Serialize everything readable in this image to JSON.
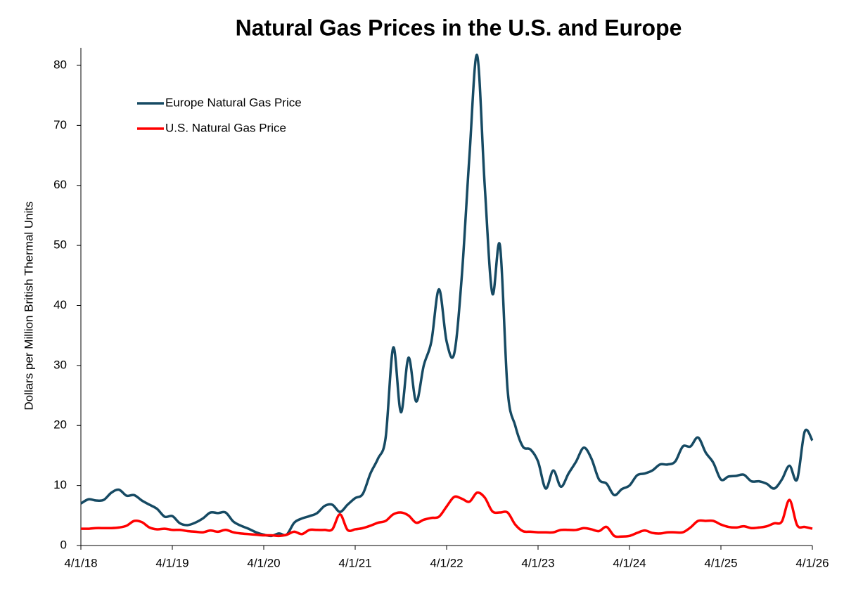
{
  "chart_data": {
    "type": "line",
    "title": "Natural Gas Prices in the U.S. and Europe",
    "y_label": "Dollars per Million British Thermal Units",
    "x": [
      "4/1/18",
      "5/1/18",
      "6/1/18",
      "7/1/18",
      "8/1/18",
      "9/1/18",
      "10/1/18",
      "11/1/18",
      "12/1/18",
      "1/1/19",
      "2/1/19",
      "3/1/19",
      "4/1/19",
      "5/1/19",
      "6/1/19",
      "7/1/19",
      "8/1/19",
      "9/1/19",
      "10/1/19",
      "11/1/19",
      "12/1/19",
      "1/1/20",
      "2/1/20",
      "3/1/20",
      "4/1/20",
      "5/1/20",
      "6/1/20",
      "7/1/20",
      "8/1/20",
      "9/1/20",
      "10/1/20",
      "11/1/20",
      "12/1/20",
      "1/1/21",
      "2/1/21",
      "3/1/21",
      "4/1/21",
      "5/1/21",
      "6/1/21",
      "7/1/21",
      "8/1/21",
      "9/1/21",
      "10/1/21",
      "11/1/21",
      "12/1/21",
      "1/1/22",
      "2/1/22",
      "3/1/22",
      "4/1/22",
      "5/1/22",
      "6/1/22",
      "7/1/22",
      "8/1/22",
      "9/1/22",
      "10/1/22",
      "11/1/22",
      "12/1/22",
      "1/1/23",
      "2/1/23",
      "3/1/23",
      "4/1/23",
      "5/1/23",
      "6/1/23",
      "7/1/23",
      "8/1/23",
      "9/1/23",
      "10/1/23",
      "11/1/23",
      "12/1/23",
      "1/1/24",
      "2/1/24",
      "3/1/24",
      "4/1/24",
      "5/1/24",
      "6/1/24",
      "7/1/24",
      "8/1/24",
      "9/1/24",
      "10/1/24",
      "11/1/24",
      "12/1/24",
      "1/1/25",
      "2/1/25",
      "3/1/25",
      "4/1/25",
      "5/1/25",
      "6/1/25",
      "7/1/25",
      "8/1/25",
      "9/1/25",
      "10/1/25",
      "11/1/25",
      "12/1/25",
      "1/1/26",
      "2/1/26",
      "3/1/26",
      "4/1/26"
    ],
    "series": [
      {
        "name": "Europe Natural Gas Price",
        "color": "#164a63",
        "values": [
          7,
          7.7,
          7.5,
          7.6,
          8.8,
          9.3,
          8.3,
          8.4,
          7.5,
          6.8,
          6.1,
          4.8,
          4.9,
          3.7,
          3.4,
          3.8,
          4.5,
          5.5,
          5.4,
          5.5,
          4.0,
          3.3,
          2.8,
          2.2,
          1.8,
          1.6,
          2.0,
          1.8,
          3.8,
          4.5,
          4.9,
          5.4,
          6.6,
          6.8,
          5.6,
          6.8,
          7.9,
          8.6,
          12,
          14.5,
          18,
          33,
          22.2,
          31.3,
          24,
          30,
          34,
          42.7,
          34,
          32,
          45,
          65,
          81.7,
          60,
          42,
          50,
          26,
          20,
          16.5,
          16,
          14,
          9.5,
          12.5,
          9.8,
          12,
          14,
          16.3,
          14.5,
          11,
          10.3,
          8.4,
          9.4,
          10,
          11.7,
          12,
          12.5,
          13.5,
          13.5,
          14,
          16.5,
          16.5,
          18,
          15.5,
          13.8,
          11,
          11.5,
          11.6,
          11.8,
          10.7,
          10.7,
          10.3,
          9.5,
          11,
          13.3,
          11,
          19,
          17.5
        ]
      },
      {
        "name": "U.S. Natural Gas Price",
        "color": "#ff0000",
        "values": [
          2.8,
          2.8,
          2.9,
          2.9,
          2.9,
          3.0,
          3.3,
          4.1,
          3.9,
          3.0,
          2.7,
          2.8,
          2.6,
          2.6,
          2.4,
          2.3,
          2.2,
          2.5,
          2.3,
          2.6,
          2.2,
          2.0,
          1.9,
          1.8,
          1.7,
          1.7,
          1.6,
          1.8,
          2.3,
          1.9,
          2.6,
          2.6,
          2.6,
          2.7,
          5.2,
          2.6,
          2.7,
          2.9,
          3.3,
          3.8,
          4.1,
          5.2,
          5.5,
          5.0,
          3.8,
          4.3,
          4.6,
          4.8,
          6.5,
          8.1,
          7.8,
          7.3,
          8.8,
          8.0,
          5.7,
          5.5,
          5.5,
          3.5,
          2.4,
          2.3,
          2.2,
          2.2,
          2.2,
          2.6,
          2.6,
          2.6,
          2.9,
          2.7,
          2.4,
          3.1,
          1.6,
          1.5,
          1.6,
          2.1,
          2.5,
          2.1,
          2.0,
          2.2,
          2.2,
          2.2,
          3.0,
          4.1,
          4.1,
          4.1,
          3.5,
          3.1,
          3.0,
          3.2,
          2.9,
          3.0,
          3.2,
          3.7,
          4.0,
          7.6,
          3.4,
          3.1,
          2.8
        ]
      }
    ],
    "xlim": [
      "4/1/18",
      "4/1/26"
    ],
    "xticks": [
      "4/1/18",
      "4/1/19",
      "4/1/20",
      "4/1/21",
      "4/1/22",
      "4/1/23",
      "4/1/24",
      "4/1/25",
      "4/1/26"
    ],
    "ylim": [
      0,
      80
    ],
    "yticks": [
      0,
      10,
      20,
      30,
      40,
      50,
      60,
      70,
      80
    ],
    "legend": "upper left"
  }
}
